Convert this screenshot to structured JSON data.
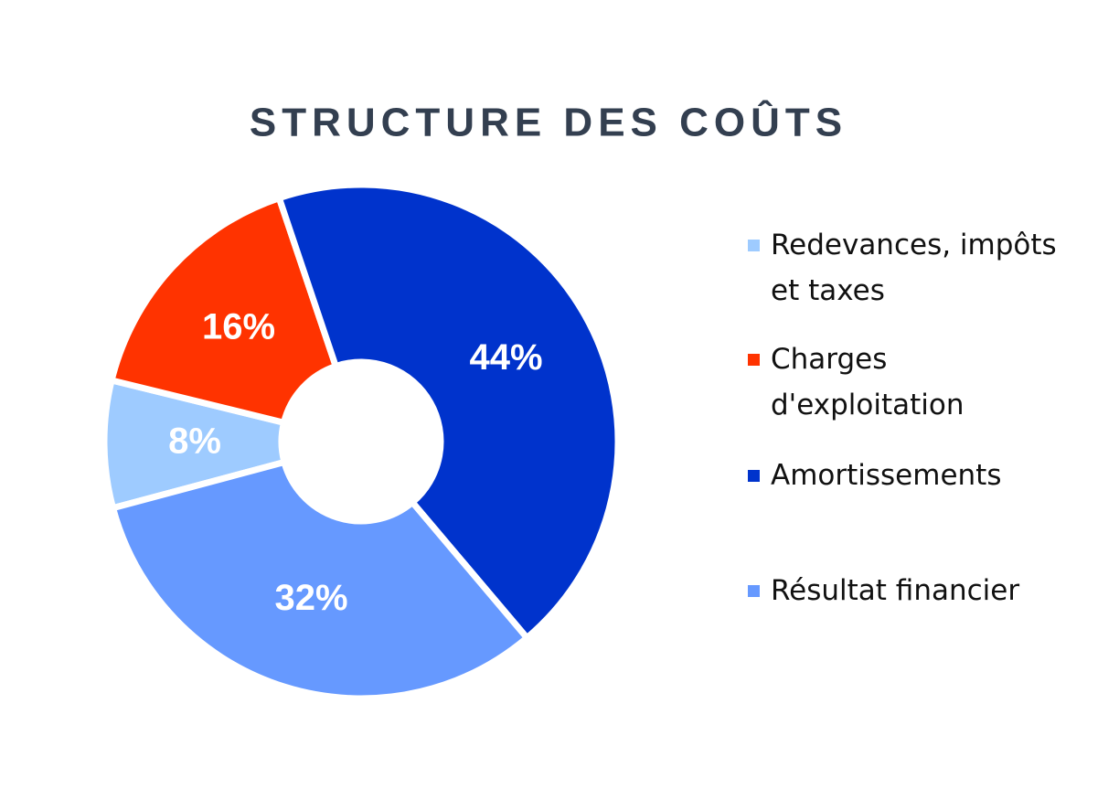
{
  "chart_data": {
    "type": "donut",
    "title": "STRUCTURE DES COÛTS",
    "categories": [
      "Redevances, impôts et taxes",
      "Charges d'exploitation",
      "Amortissements",
      "Résultat financier"
    ],
    "values": [
      8,
      16,
      44,
      32
    ],
    "value_labels": [
      "8%",
      "16%",
      "44%",
      "32%"
    ],
    "colors": [
      "#9ecbff",
      "#ff3300",
      "#0033cc",
      "#6699ff"
    ],
    "legend": "right"
  }
}
